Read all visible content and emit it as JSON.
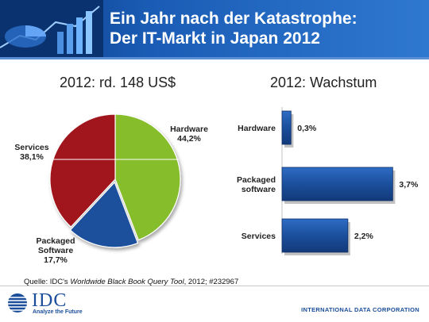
{
  "header": {
    "title_line1": "Ein Jahr nach der Katastrophe:",
    "title_line2": "Der IT-Markt in Japan 2012"
  },
  "pie_subtitle": "2012: rd. 148 US$",
  "bar_subtitle": "2012: Wachstum",
  "source": {
    "prefix": "Quelle: IDC's ",
    "italic": "Worldwide Black Book Query Tool",
    "suffix": ", 2012; #232967"
  },
  "logo": {
    "name": "IDC",
    "tagline": "Analyze the Future"
  },
  "footer_corp": "INTERNATIONAL DATA CORPORATION",
  "colors": {
    "hardware": "#86bd2c",
    "software": "#1b4f9c",
    "services": "#a0141b",
    "bar": "#1b4f9c"
  },
  "chart_data": [
    {
      "type": "pie",
      "title": "2012: rd. 148 US$",
      "slices": [
        {
          "name": "Hardware",
          "value": 44.2,
          "label": "Hardware",
          "pct": "44,2%"
        },
        {
          "name": "Packaged Software",
          "value": 17.7,
          "label": "Packaged Software",
          "pct": "17,7%"
        },
        {
          "name": "Services",
          "value": 38.1,
          "label": "Services",
          "pct": "38,1%"
        }
      ]
    },
    {
      "type": "bar",
      "orientation": "horizontal",
      "title": "2012: Wachstum",
      "categories": [
        "Hardware",
        "Packaged software",
        "Services"
      ],
      "values": [
        0.3,
        3.7,
        2.2
      ],
      "value_labels": [
        "0,3%",
        "3,7%",
        "2,2%"
      ],
      "xlim": [
        0,
        4.2
      ]
    }
  ]
}
